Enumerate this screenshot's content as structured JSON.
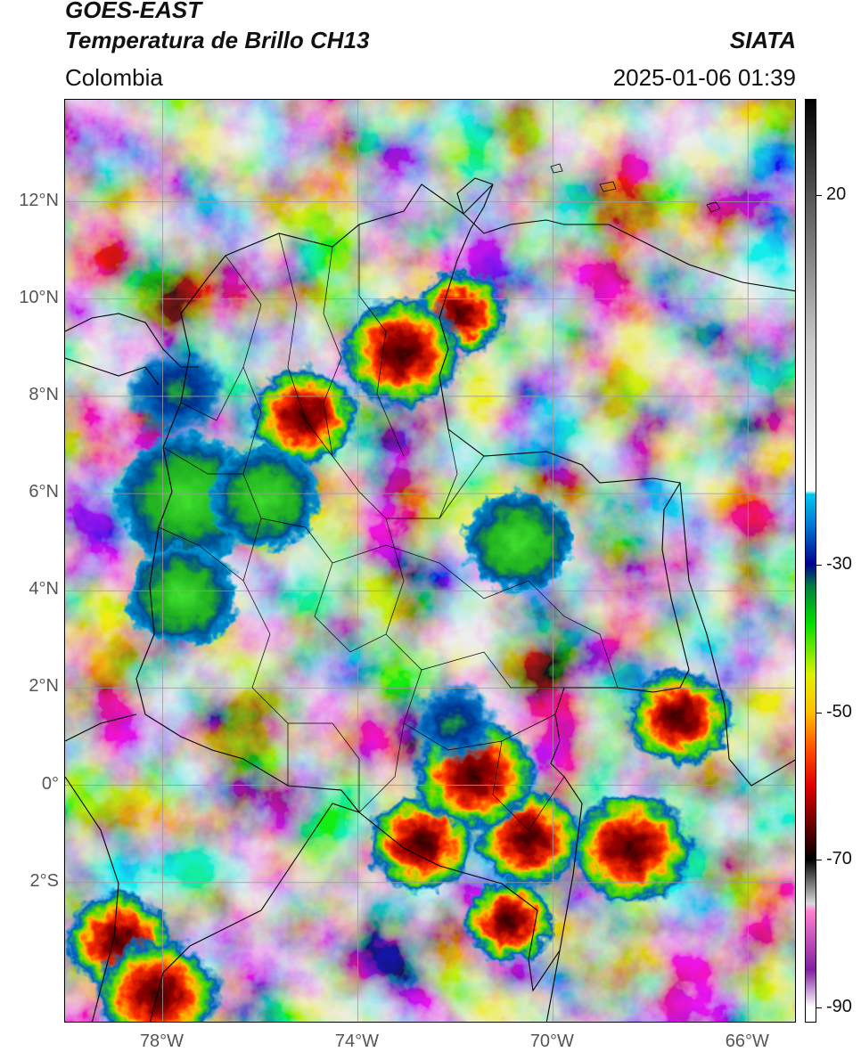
{
  "header": {
    "satellite": "GOES-EAST",
    "product": "Temperatura de Brillo CH13",
    "region": "Colombia",
    "agency": "SIATA",
    "timestamp": "2025-01-06 01:39"
  },
  "map": {
    "lat_range": [
      -4.9,
      14.1
    ],
    "lon_range": [
      -80.0,
      -65.0
    ],
    "lat_ticks": [
      {
        "value": 12,
        "label": "12°N"
      },
      {
        "value": 10,
        "label": "10°N"
      },
      {
        "value": 8,
        "label": "8°N"
      },
      {
        "value": 6,
        "label": "6°N"
      },
      {
        "value": 4,
        "label": "4°N"
      },
      {
        "value": 2,
        "label": "2°N"
      },
      {
        "value": 0,
        "label": "0°"
      },
      {
        "value": -2,
        "label": "2°S"
      }
    ],
    "lon_ticks": [
      {
        "value": -78,
        "label": "78°W"
      },
      {
        "value": -74,
        "label": "74°W"
      },
      {
        "value": -70,
        "label": "70°W"
      },
      {
        "value": -66,
        "label": "66°W"
      }
    ],
    "gridlines": true,
    "colors": {
      "background_gray": "#8a8a8a",
      "cloud_light": "#e6e6e6",
      "border_line": "#000000"
    }
  },
  "colorbar": {
    "range": [
      -92,
      33
    ],
    "ticks": [
      {
        "value": 20,
        "label": "20"
      },
      {
        "value": -30,
        "label": "-30"
      },
      {
        "value": -50,
        "label": "-50"
      },
      {
        "value": -70,
        "label": "-70"
      },
      {
        "value": -90,
        "label": "-90"
      }
    ],
    "stops": [
      {
        "value": 33,
        "color": "#000000"
      },
      {
        "value": 20,
        "color": "#555555"
      },
      {
        "value": 0,
        "color": "#c8c8c8"
      },
      {
        "value": -20,
        "color": "#ffffff"
      },
      {
        "value": -20.5,
        "color": "#00c8f0"
      },
      {
        "value": -25,
        "color": "#0070d0"
      },
      {
        "value": -30,
        "color": "#000090"
      },
      {
        "value": -33,
        "color": "#008040"
      },
      {
        "value": -38,
        "color": "#00e000"
      },
      {
        "value": -45,
        "color": "#e0f000"
      },
      {
        "value": -50,
        "color": "#ffc000"
      },
      {
        "value": -55,
        "color": "#ff5000"
      },
      {
        "value": -60,
        "color": "#e00000"
      },
      {
        "value": -65,
        "color": "#700000"
      },
      {
        "value": -70,
        "color": "#000000"
      },
      {
        "value": -76,
        "color": "#d8d8d8"
      },
      {
        "value": -77,
        "color": "#ff80d0"
      },
      {
        "value": -85,
        "color": "#8020a0"
      },
      {
        "value": -90,
        "color": "#ffffff"
      }
    ]
  },
  "storm_cells": [
    {
      "lon": -71.9,
      "lat": 9.7,
      "kind": "red"
    },
    {
      "lon": -75.1,
      "lat": 7.6,
      "kind": "red"
    },
    {
      "lon": -73.1,
      "lat": 8.9,
      "kind": "red"
    },
    {
      "lon": -70.7,
      "lat": 5.0,
      "kind": "green"
    },
    {
      "lon": -77.7,
      "lat": 8.1,
      "kind": "blue"
    },
    {
      "lon": -77.5,
      "lat": 5.9,
      "kind": "green"
    },
    {
      "lon": -77.6,
      "lat": 3.9,
      "kind": "green"
    },
    {
      "lon": -72.7,
      "lat": -1.2,
      "kind": "red"
    },
    {
      "lon": -68.4,
      "lat": -1.3,
      "kind": "red"
    },
    {
      "lon": -70.9,
      "lat": -2.8,
      "kind": "red"
    },
    {
      "lon": -70.5,
      "lat": -1.1,
      "kind": "red"
    },
    {
      "lon": -71.6,
      "lat": 0.2,
      "kind": "red"
    },
    {
      "lon": -72.0,
      "lat": 1.3,
      "kind": "blue"
    },
    {
      "lon": -78.9,
      "lat": -3.2,
      "kind": "red"
    },
    {
      "lon": -78.1,
      "lat": -4.3,
      "kind": "red"
    },
    {
      "lon": -75.9,
      "lat": 5.9,
      "kind": "green"
    },
    {
      "lon": -67.4,
      "lat": 1.4,
      "kind": "red"
    }
  ]
}
